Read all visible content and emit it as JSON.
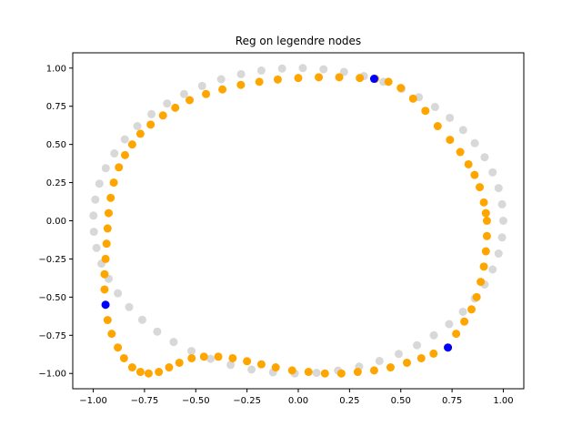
{
  "chart_data": {
    "type": "scatter",
    "title": "Reg on legendre nodes",
    "xlabel": "",
    "ylabel": "",
    "xlim": [
      -1.1,
      1.1
    ],
    "ylim": [
      -1.1,
      1.1
    ],
    "xticks": [
      -1.0,
      -0.75,
      -0.5,
      -0.25,
      0.0,
      0.25,
      0.5,
      0.75,
      1.0
    ],
    "yticks": [
      -1.0,
      -0.75,
      -0.5,
      -0.25,
      0.0,
      0.25,
      0.5,
      0.75,
      1.0
    ],
    "xtick_labels": [
      "−1.00",
      "−0.75",
      "−0.50",
      "−0.25",
      "0.00",
      "0.25",
      "0.50",
      "0.75",
      "1.00"
    ],
    "ytick_labels": [
      "−1.00",
      "−0.75",
      "−0.50",
      "−0.25",
      "0.00",
      "0.25",
      "0.50",
      "0.75",
      "1.00"
    ],
    "grid": false,
    "series": [
      {
        "color": "#c8c8c8",
        "opacity": 0.7,
        "points": [
          [
            1.0,
            0.0
          ],
          [
            0.994,
            0.108
          ],
          [
            0.977,
            0.214
          ],
          [
            0.948,
            0.317
          ],
          [
            0.909,
            0.416
          ],
          [
            0.861,
            0.508
          ],
          [
            0.804,
            0.594
          ],
          [
            0.739,
            0.674
          ],
          [
            0.667,
            0.745
          ],
          [
            0.588,
            0.809
          ],
          [
            0.504,
            0.864
          ],
          [
            0.415,
            0.91
          ],
          [
            0.32,
            0.947
          ],
          [
            0.223,
            0.975
          ],
          [
            0.123,
            0.992
          ],
          [
            0.022,
            1.0
          ],
          [
            -0.079,
            0.997
          ],
          [
            -0.18,
            0.984
          ],
          [
            -0.279,
            0.96
          ],
          [
            -0.376,
            0.927
          ],
          [
            -0.469,
            0.883
          ],
          [
            -0.557,
            0.83
          ],
          [
            -0.64,
            0.768
          ],
          [
            -0.716,
            0.698
          ],
          [
            -0.785,
            0.62
          ],
          [
            -0.846,
            0.533
          ],
          [
            -0.897,
            0.441
          ],
          [
            -0.939,
            0.344
          ],
          [
            -0.97,
            0.243
          ],
          [
            -0.99,
            0.139
          ],
          [
            -0.999,
            0.034
          ],
          [
            -0.997,
            -0.072
          ],
          [
            -0.984,
            -0.178
          ],
          [
            -0.96,
            -0.281
          ],
          [
            -0.925,
            -0.38
          ],
          [
            -0.88,
            -0.475
          ],
          [
            -0.825,
            -0.565
          ],
          [
            -0.761,
            -0.649
          ],
          [
            -0.688,
            -0.726
          ],
          [
            -0.608,
            -0.794
          ],
          [
            -0.521,
            -0.853
          ],
          [
            -0.428,
            -0.904
          ],
          [
            -0.33,
            -0.944
          ],
          [
            -0.228,
            -0.974
          ],
          [
            -0.123,
            -0.992
          ],
          [
            -0.017,
            -1.0
          ],
          [
            0.089,
            -0.996
          ],
          [
            0.194,
            -0.981
          ],
          [
            0.297,
            -0.955
          ],
          [
            0.396,
            -0.918
          ],
          [
            0.49,
            -0.872
          ],
          [
            0.579,
            -0.815
          ],
          [
            0.661,
            -0.75
          ],
          [
            0.736,
            -0.677
          ],
          [
            0.803,
            -0.596
          ],
          [
            0.861,
            -0.509
          ],
          [
            0.909,
            -0.417
          ],
          [
            0.948,
            -0.319
          ],
          [
            0.977,
            -0.215
          ],
          [
            0.994,
            -0.109
          ]
        ]
      },
      {
        "color": "#ffa500",
        "opacity": 1.0,
        "points": [
          [
            0.92,
            0.0
          ],
          [
            0.92,
            -0.1
          ],
          [
            0.915,
            -0.2
          ],
          [
            0.905,
            -0.3
          ],
          [
            0.89,
            -0.4
          ],
          [
            0.87,
            -0.5
          ],
          [
            0.845,
            -0.58
          ],
          [
            0.81,
            -0.66
          ],
          [
            0.77,
            -0.74
          ],
          [
            0.73,
            -0.83
          ],
          [
            0.66,
            -0.87
          ],
          [
            0.6,
            -0.9
          ],
          [
            0.53,
            -0.93
          ],
          [
            0.45,
            -0.96
          ],
          [
            0.37,
            -0.98
          ],
          [
            0.29,
            -0.99
          ],
          [
            0.21,
            -1.0
          ],
          [
            0.13,
            -1.0
          ],
          [
            0.05,
            -0.99
          ],
          [
            -0.03,
            -0.98
          ],
          [
            -0.11,
            -0.96
          ],
          [
            -0.18,
            -0.94
          ],
          [
            -0.25,
            -0.92
          ],
          [
            -0.32,
            -0.9
          ],
          [
            -0.39,
            -0.89
          ],
          [
            -0.46,
            -0.89
          ],
          [
            -0.52,
            -0.9
          ],
          [
            -0.58,
            -0.93
          ],
          [
            -0.63,
            -0.96
          ],
          [
            -0.68,
            -0.99
          ],
          [
            -0.73,
            -1.0
          ],
          [
            -0.77,
            -0.99
          ],
          [
            -0.81,
            -0.96
          ],
          [
            -0.85,
            -0.9
          ],
          [
            -0.88,
            -0.83
          ],
          [
            -0.91,
            -0.74
          ],
          [
            -0.93,
            -0.65
          ],
          [
            -0.94,
            -0.55
          ],
          [
            -0.945,
            -0.45
          ],
          [
            -0.945,
            -0.35
          ],
          [
            -0.94,
            -0.25
          ],
          [
            -0.935,
            -0.15
          ],
          [
            -0.93,
            -0.05
          ],
          [
            -0.925,
            0.05
          ],
          [
            -0.915,
            0.15
          ],
          [
            -0.9,
            0.25
          ],
          [
            -0.875,
            0.35
          ],
          [
            -0.845,
            0.43
          ],
          [
            -0.81,
            0.5
          ],
          [
            -0.77,
            0.57
          ],
          [
            -0.72,
            0.63
          ],
          [
            -0.66,
            0.69
          ],
          [
            -0.6,
            0.74
          ],
          [
            -0.53,
            0.79
          ],
          [
            -0.45,
            0.83
          ],
          [
            -0.37,
            0.86
          ],
          [
            -0.28,
            0.89
          ],
          [
            -0.19,
            0.91
          ],
          [
            -0.1,
            0.925
          ],
          [
            0.0,
            0.935
          ],
          [
            0.1,
            0.94
          ],
          [
            0.2,
            0.94
          ],
          [
            0.3,
            0.935
          ],
          [
            0.375,
            0.93
          ],
          [
            0.44,
            0.91
          ],
          [
            0.5,
            0.87
          ],
          [
            0.56,
            0.8
          ],
          [
            0.62,
            0.72
          ],
          [
            0.68,
            0.62
          ],
          [
            0.74,
            0.53
          ],
          [
            0.79,
            0.45
          ],
          [
            0.83,
            0.37
          ],
          [
            0.86,
            0.3
          ],
          [
            0.885,
            0.22
          ],
          [
            0.905,
            0.12
          ],
          [
            0.915,
            0.05
          ]
        ]
      },
      {
        "color": "#0000ff",
        "opacity": 1.0,
        "points": [
          [
            0.37,
            0.93
          ],
          [
            -0.94,
            -0.55
          ],
          [
            0.73,
            -0.83
          ]
        ]
      }
    ]
  }
}
